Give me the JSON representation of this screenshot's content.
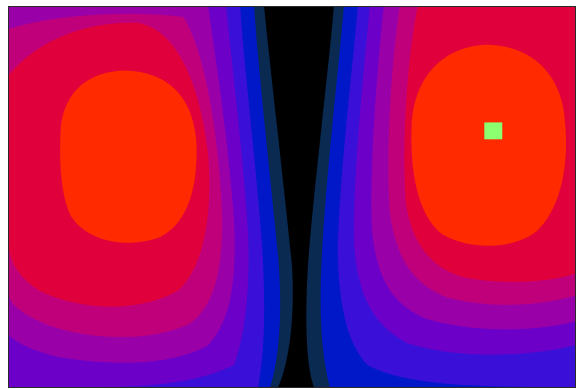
{
  "scene": {
    "description_visible_text": "",
    "palette": {
      "background": "#000000",
      "band_1": "#0a2a52",
      "band_2": "#0018c8",
      "band_3": "#3a10d8",
      "band_4": "#6c00c8",
      "band_5": "#9a00a8",
      "band_6": "#c0007a",
      "band_7": "#e0003c",
      "band_8": "#ff2a00",
      "marker": "#8cff70"
    },
    "marker": {
      "icon": "target-square-icon"
    }
  }
}
